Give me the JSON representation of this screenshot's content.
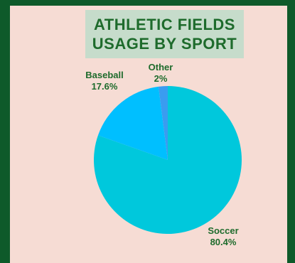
{
  "chart_data": {
    "type": "pie",
    "title_lines": [
      "ATHLETIC FIELDS",
      "USAGE BY SPORT"
    ],
    "slices": [
      {
        "label": "Soccer",
        "value_text": "80.4%",
        "value": 80.4,
        "color": "#00c8dc"
      },
      {
        "label": "Baseball",
        "value_text": "17.6%",
        "value": 17.6,
        "color": "#00bfff"
      },
      {
        "label": "Other",
        "value_text": "2%",
        "value": 2,
        "color": "#3a9cf0"
      }
    ],
    "legend": "none",
    "label_color": "#1e6b2c"
  }
}
